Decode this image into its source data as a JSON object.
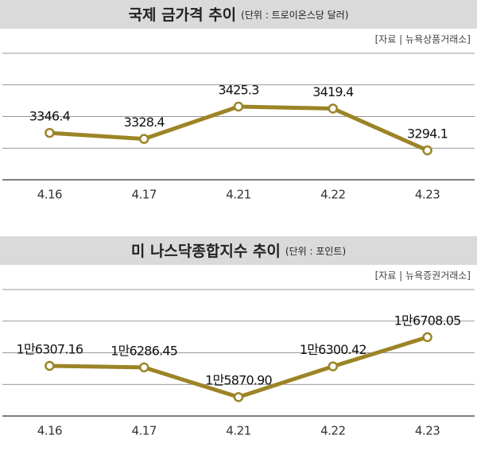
{
  "chart_data": [
    {
      "type": "line",
      "title": "국제 금가격 추이",
      "subtitle": "(단위 : 트로이온스당 달러)",
      "source": "[자료 | 뉴욕상품거래소]",
      "categories": [
        "4.16",
        "4.17",
        "4.21",
        "4.22",
        "4.23"
      ],
      "values": [
        3346.4,
        3328.4,
        3425.3,
        3419.4,
        3294.1
      ],
      "color": "#9c8426",
      "ylim": [
        3206,
        3585
      ],
      "grid": true
    },
    {
      "type": "line",
      "title": "미 나스닥종합지수 추이",
      "subtitle": "(단위 : 포인트)",
      "source": "[자료 | 뉴욕증권거래소]",
      "categories": [
        "4.16",
        "4.17",
        "4.21",
        "4.22",
        "4.23"
      ],
      "values": [
        16307.16,
        16286.45,
        15870.9,
        16300.42,
        16708.05
      ],
      "value_labels": [
        "1만6307.16",
        "1만6286.45",
        "1만5870.90",
        "1만6300.42",
        "1만6708.05"
      ],
      "color": "#9c8426",
      "ylim": [
        15607,
        17373
      ],
      "grid": true
    }
  ]
}
